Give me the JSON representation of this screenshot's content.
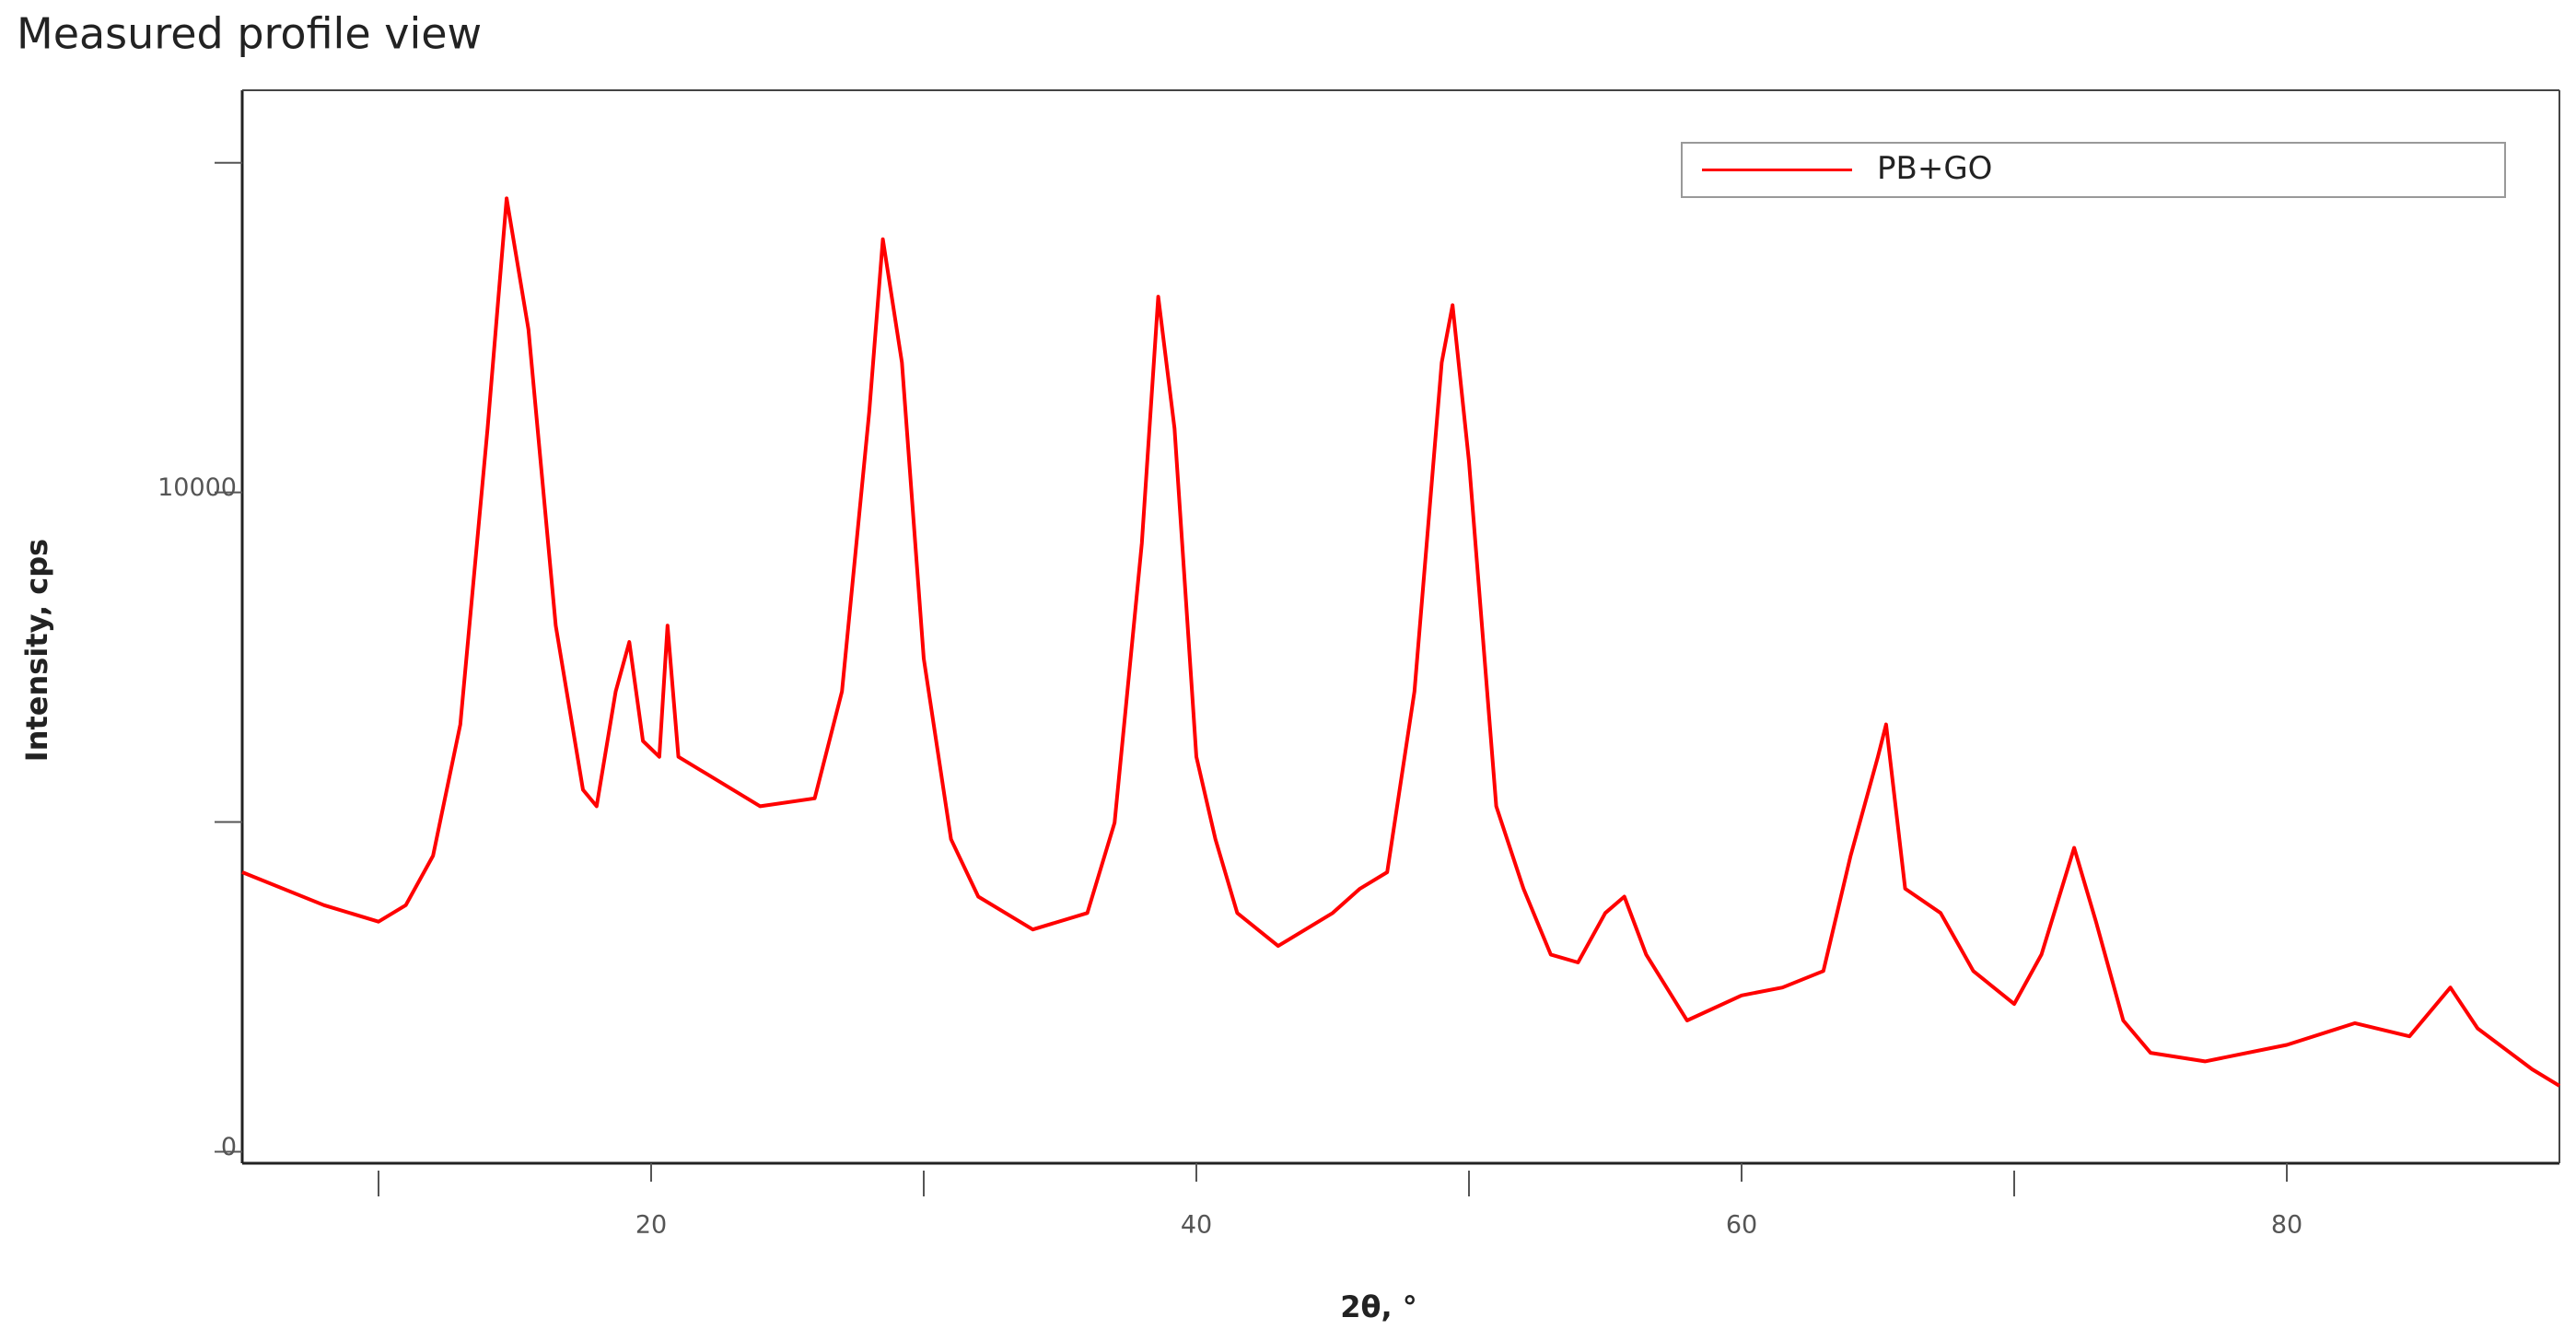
{
  "chart_data": {
    "type": "line",
    "title": "Measured profile view",
    "xlabel": "2θ, °",
    "ylabel": "Intensity, cps",
    "x": [
      5,
      8,
      10,
      11,
      12,
      13,
      14,
      14.7,
      15.5,
      16.5,
      17.5,
      18,
      18.7,
      19.2,
      19.7,
      20.3,
      20.6,
      21,
      22,
      24,
      26,
      27,
      28,
      28.5,
      29.2,
      30,
      31,
      32,
      34,
      36,
      37,
      38,
      38.6,
      39.2,
      40,
      40.7,
      41.5,
      43,
      45,
      46,
      47,
      48,
      49,
      49.4,
      50,
      51,
      52,
      53,
      54,
      55,
      55.7,
      56.5,
      58,
      60,
      61.5,
      63,
      64,
      65,
      65.3,
      66,
      67.3,
      68.5,
      70,
      71,
      72.2,
      73,
      74,
      75,
      77,
      80,
      82.5,
      84.5,
      86,
      87,
      89,
      90
    ],
    "series": [
      {
        "name": "PB+GO",
        "color": "#ff0000",
        "values": [
          4240,
          3740,
          3490,
          3740,
          4490,
          6480,
          10970,
          14460,
          12470,
          7980,
          5490,
          5240,
          6980,
          7730,
          6230,
          5990,
          7980,
          5990,
          5740,
          5240,
          5360,
          6980,
          11220,
          13840,
          11970,
          7480,
          4740,
          3870,
          3370,
          3620,
          4990,
          9230,
          12970,
          10970,
          5990,
          4740,
          3620,
          3120,
          3620,
          3990,
          4240,
          6980,
          11970,
          12840,
          10470,
          5240,
          3990,
          2990,
          2870,
          3620,
          3870,
          2990,
          1990,
          2370,
          2490,
          2740,
          4490,
          5990,
          6480,
          3990,
          3620,
          2740,
          2240,
          2990,
          4610,
          3490,
          1990,
          1500,
          1370,
          1620,
          1950,
          1750,
          2490,
          1870,
          1250,
          1000
        ]
      }
    ],
    "xlim": [
      5,
      90
    ],
    "xticks": [
      20,
      40,
      60,
      80
    ],
    "xminorticks": [
      10,
      30,
      50,
      70
    ],
    "ylim": [
      -175,
      16100
    ],
    "yticks": [
      0,
      10000
    ],
    "yminorticks": [
      5000,
      15000
    ],
    "grid": false,
    "legend": "top-right"
  }
}
